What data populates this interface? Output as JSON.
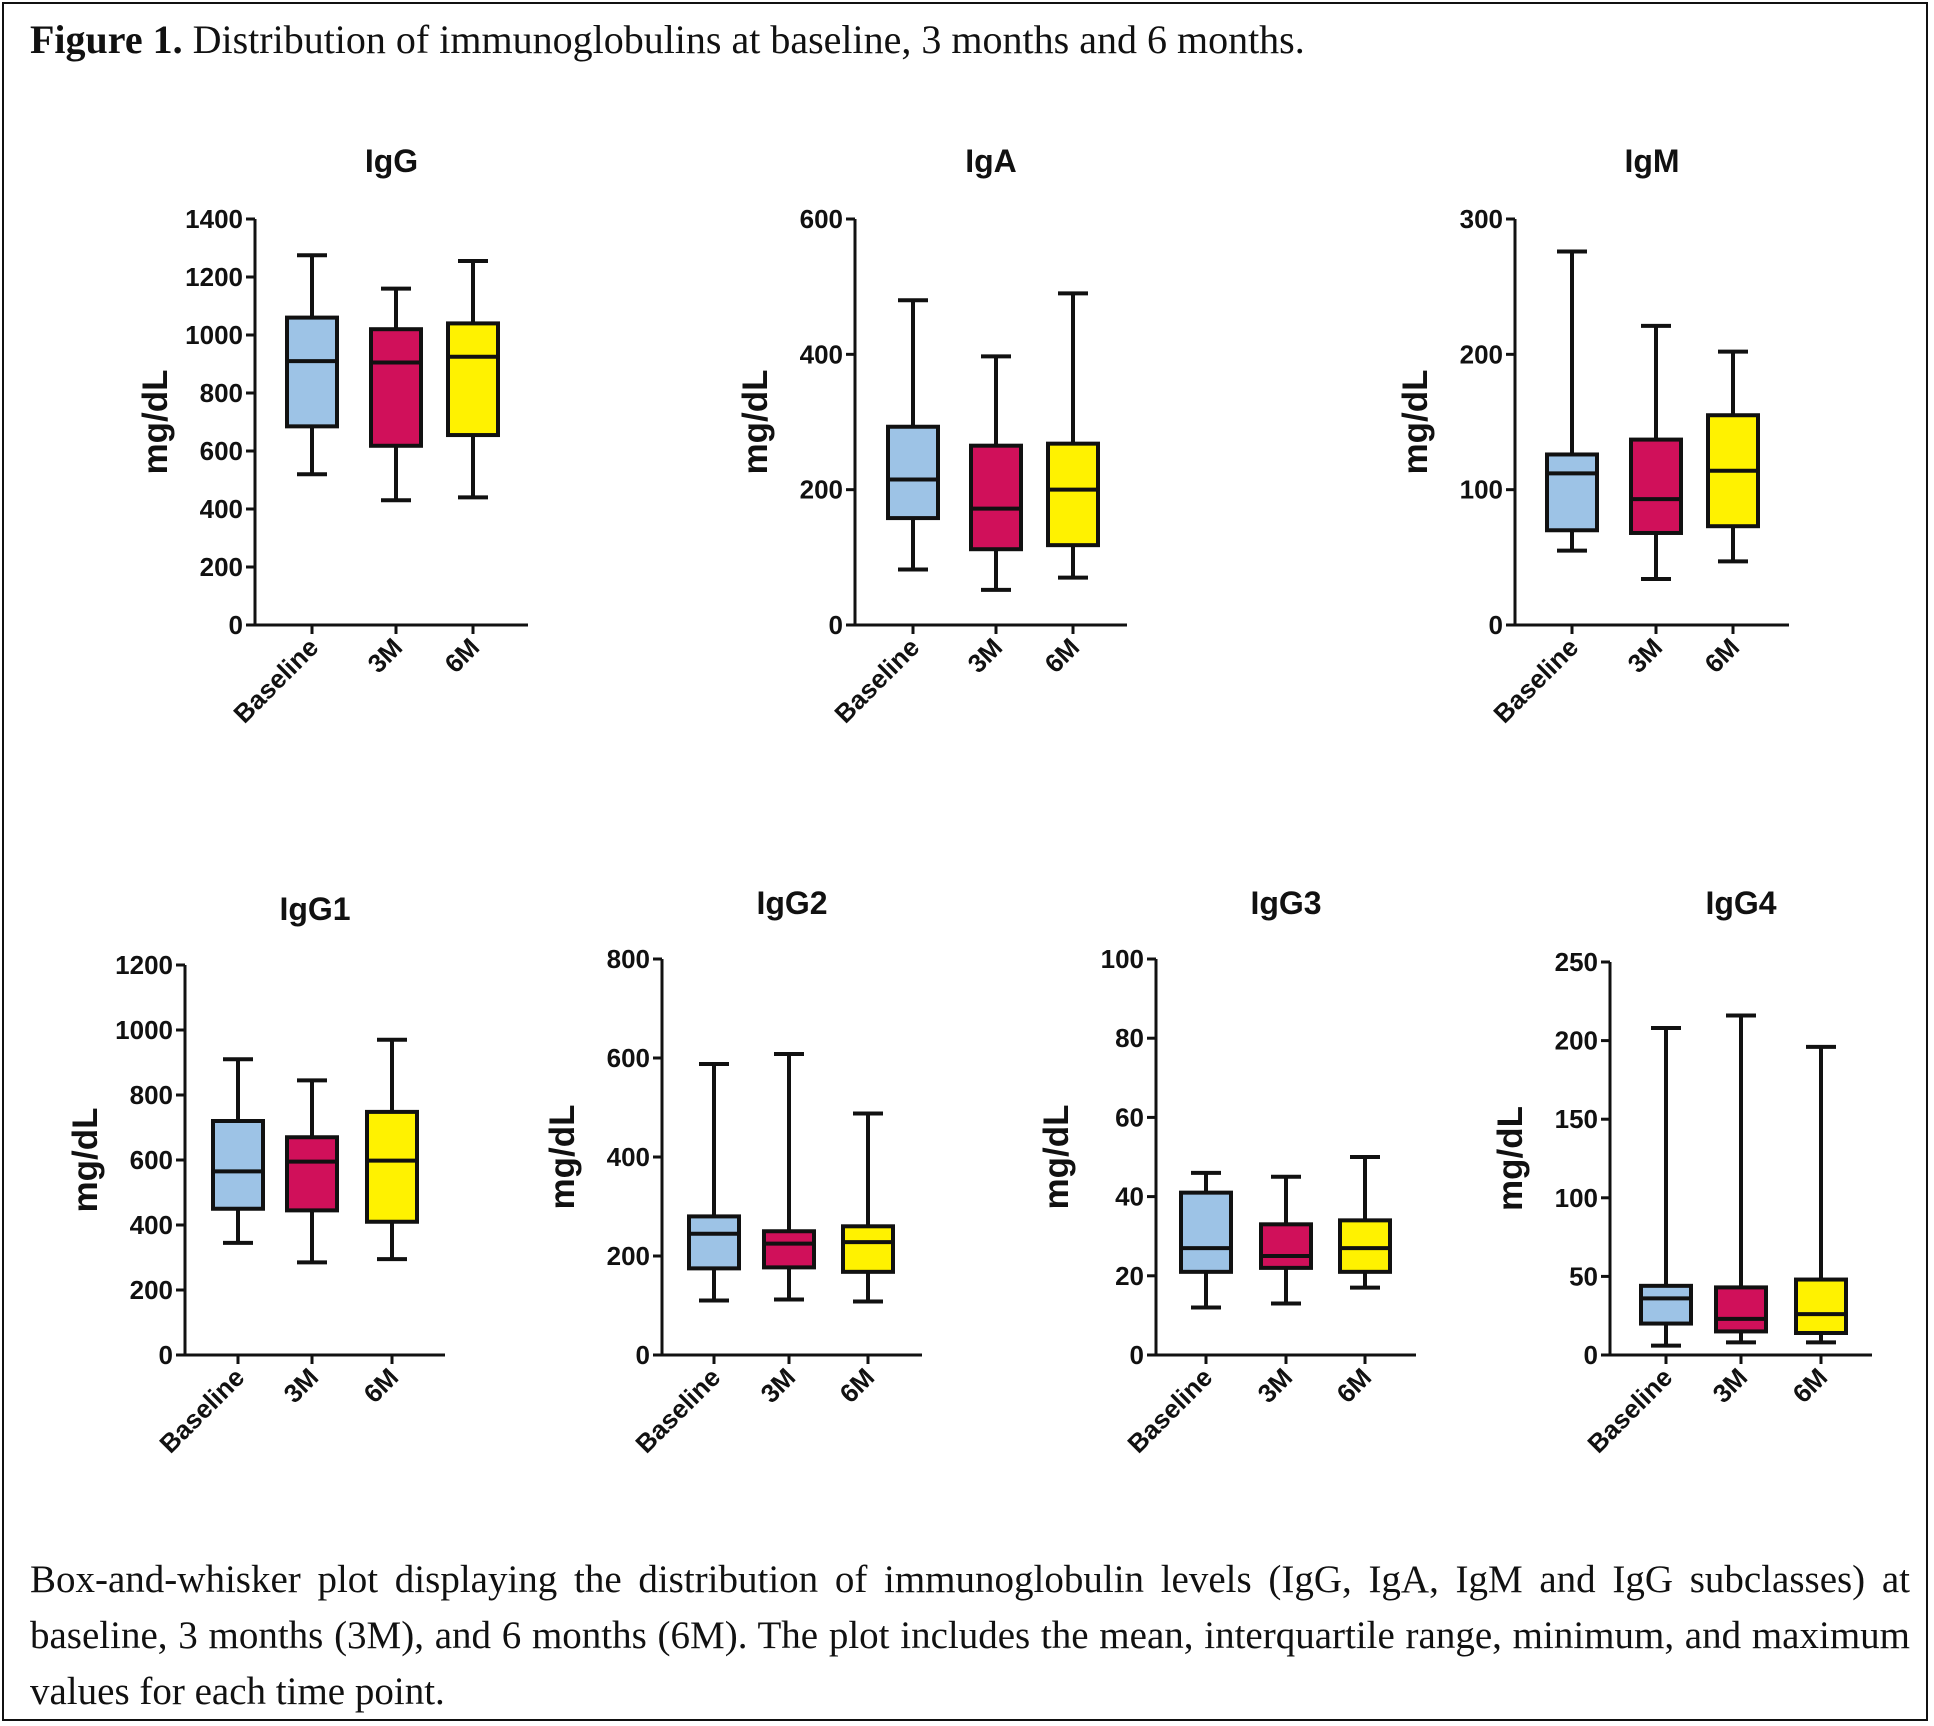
{
  "figure": {
    "label": "Figure 1.",
    "title": "Distribution of immunoglobulins at baseline, 3 months and 6 months.",
    "caption": "Box-and-whisker plot displaying the distribution of immunoglobulin levels (IgG, IgA, IgM and IgG subclasses) at baseline, 3 months (3M), and 6 months (6M). The plot includes the mean, interquartile range, minimum, and maximum values for each time point."
  },
  "colors": {
    "Baseline": "#9dc3e6",
    "3M": "#d0105a",
    "6M": "#fff200",
    "stroke": "#111111"
  },
  "chart_data": [
    {
      "type": "box",
      "title": "IgG",
      "ylabel": "mg/dL",
      "categories": [
        "Baseline",
        "3M",
        "6M"
      ],
      "ylim": [
        0,
        1400
      ],
      "yticks": [
        0,
        200,
        400,
        600,
        800,
        1000,
        1200,
        1400
      ],
      "boxes": [
        {
          "min": 520,
          "q1": 685,
          "median": 910,
          "q3": 1060,
          "max": 1275
        },
        {
          "min": 430,
          "q1": 618,
          "median": 905,
          "q3": 1020,
          "max": 1160
        },
        {
          "min": 440,
          "q1": 655,
          "median": 925,
          "q3": 1040,
          "max": 1255
        }
      ]
    },
    {
      "type": "box",
      "title": "IgA",
      "ylabel": "mg/dL",
      "categories": [
        "Baseline",
        "3M",
        "6M"
      ],
      "ylim": [
        0,
        600
      ],
      "yticks": [
        0,
        200,
        400,
        600
      ],
      "boxes": [
        {
          "min": 82,
          "q1": 158,
          "median": 215,
          "q3": 293,
          "max": 480
        },
        {
          "min": 52,
          "q1": 112,
          "median": 172,
          "q3": 265,
          "max": 397
        },
        {
          "min": 70,
          "q1": 118,
          "median": 200,
          "q3": 268,
          "max": 490
        }
      ]
    },
    {
      "type": "box",
      "title": "IgM",
      "ylabel": "mg/dL",
      "categories": [
        "Baseline",
        "3M",
        "6M"
      ],
      "ylim": [
        0,
        300
      ],
      "yticks": [
        0,
        100,
        200,
        300
      ],
      "boxes": [
        {
          "min": 55,
          "q1": 70,
          "median": 112,
          "q3": 126,
          "max": 276
        },
        {
          "min": 34,
          "q1": 68,
          "median": 93,
          "q3": 137,
          "max": 221
        },
        {
          "min": 47,
          "q1": 73,
          "median": 114,
          "q3": 155,
          "max": 202
        }
      ]
    },
    {
      "type": "box",
      "title": "IgG1",
      "ylabel": "mg/dL",
      "categories": [
        "Baseline",
        "3M",
        "6M"
      ],
      "ylim": [
        0,
        1200
      ],
      "yticks": [
        0,
        200,
        400,
        600,
        800,
        1000,
        1200
      ],
      "boxes": [
        {
          "min": 345,
          "q1": 450,
          "median": 565,
          "q3": 720,
          "max": 910
        },
        {
          "min": 285,
          "q1": 445,
          "median": 595,
          "q3": 670,
          "max": 845
        },
        {
          "min": 295,
          "q1": 410,
          "median": 598,
          "q3": 748,
          "max": 970
        }
      ]
    },
    {
      "type": "box",
      "title": "IgG2",
      "ylabel": "mg/dL",
      "categories": [
        "Baseline",
        "3M",
        "6M"
      ],
      "ylim": [
        0,
        800
      ],
      "yticks": [
        0,
        200,
        400,
        600,
        800
      ],
      "boxes": [
        {
          "min": 110,
          "q1": 175,
          "median": 245,
          "q3": 280,
          "max": 588
        },
        {
          "min": 112,
          "q1": 177,
          "median": 225,
          "q3": 250,
          "max": 608
        },
        {
          "min": 108,
          "q1": 168,
          "median": 228,
          "q3": 260,
          "max": 488
        }
      ]
    },
    {
      "type": "box",
      "title": "IgG3",
      "ylabel": "mg/dL",
      "categories": [
        "Baseline",
        "3M",
        "6M"
      ],
      "ylim": [
        0,
        100
      ],
      "yticks": [
        0,
        20,
        40,
        60,
        80,
        100
      ],
      "boxes": [
        {
          "min": 12,
          "q1": 21,
          "median": 27,
          "q3": 41,
          "max": 46
        },
        {
          "min": 13,
          "q1": 22,
          "median": 25,
          "q3": 33,
          "max": 45
        },
        {
          "min": 17,
          "q1": 21,
          "median": 27,
          "q3": 34,
          "max": 50
        }
      ]
    },
    {
      "type": "box",
      "title": "IgG4",
      "ylabel": "mg/dL",
      "categories": [
        "Baseline",
        "3M",
        "6M"
      ],
      "ylim": [
        0,
        250
      ],
      "yticks": [
        0,
        50,
        100,
        150,
        200,
        250
      ],
      "boxes": [
        {
          "min": 6,
          "q1": 20,
          "median": 36,
          "q3": 44,
          "max": 208
        },
        {
          "min": 8,
          "q1": 15,
          "median": 23,
          "q3": 43,
          "max": 216
        },
        {
          "min": 8,
          "q1": 14,
          "median": 26,
          "q3": 48,
          "max": 196
        }
      ]
    }
  ]
}
